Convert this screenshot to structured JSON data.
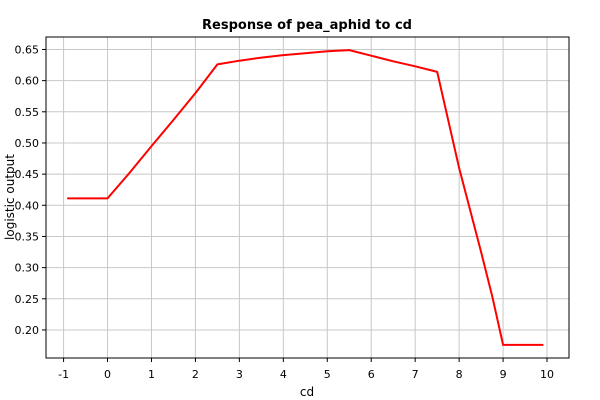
{
  "chart_data": {
    "type": "line",
    "title": "Response of pea_aphid to cd",
    "xlabel": "cd",
    "ylabel": "logistic output",
    "xlim": [
      -1.4,
      10.5
    ],
    "ylim": [
      0.155,
      0.67
    ],
    "x_ticks": [
      -1,
      0,
      1,
      2,
      3,
      4,
      5,
      6,
      7,
      8,
      9,
      10
    ],
    "y_ticks": [
      0.2,
      0.25,
      0.3,
      0.35,
      0.4,
      0.45,
      0.5,
      0.55,
      0.6,
      0.65
    ],
    "grid": true,
    "series": [
      {
        "color": "#ff0000",
        "x": [
          -0.9,
          0.0,
          0.5,
          1.0,
          1.5,
          2.0,
          2.5,
          3.0,
          3.5,
          4.0,
          4.5,
          5.0,
          5.5,
          6.0,
          6.5,
          7.0,
          7.5,
          8.0,
          8.5,
          8.75,
          9.0,
          9.5,
          9.9
        ],
        "y": [
          0.411,
          0.411,
          0.452,
          0.495,
          0.537,
          0.58,
          0.626,
          0.632,
          0.637,
          0.641,
          0.644,
          0.647,
          0.649,
          0.64,
          0.631,
          0.623,
          0.614,
          0.46,
          0.325,
          0.255,
          0.176,
          0.176,
          0.176
        ]
      }
    ]
  }
}
